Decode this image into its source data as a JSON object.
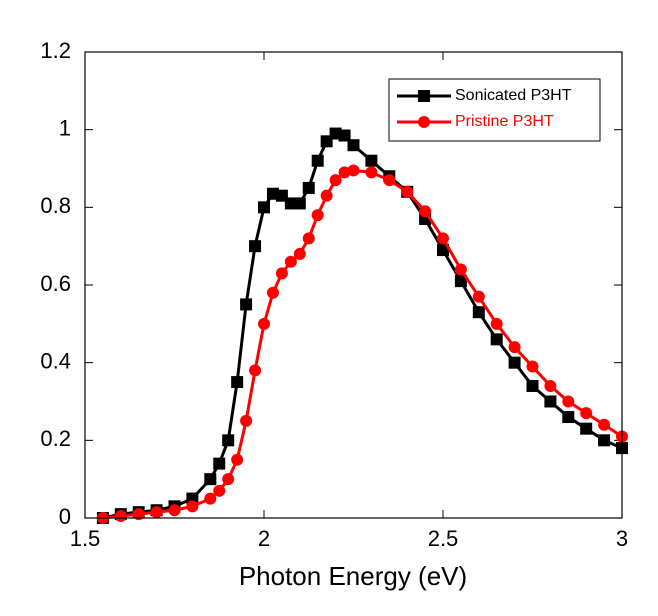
{
  "chart_data": {
    "type": "line",
    "xlabel": "Photon Energy (eV)",
    "x": [
      1.55,
      1.6,
      1.65,
      1.7,
      1.75,
      1.8,
      1.85,
      1.875,
      1.9,
      1.925,
      1.95,
      1.975,
      2.0,
      2.025,
      2.05,
      2.075,
      2.1,
      2.125,
      2.15,
      2.175,
      2.2,
      2.225,
      2.25,
      2.3,
      2.35,
      2.4,
      2.45,
      2.5,
      2.55,
      2.6,
      2.65,
      2.7,
      2.75,
      2.8,
      2.85,
      2.9,
      2.95,
      3.0
    ],
    "series": [
      {
        "name": "Sonicated P3HT",
        "color": "#000000",
        "marker": "square",
        "values": [
          0.0,
          0.01,
          0.015,
          0.02,
          0.03,
          0.05,
          0.1,
          0.14,
          0.2,
          0.35,
          0.55,
          0.7,
          0.8,
          0.835,
          0.83,
          0.81,
          0.81,
          0.85,
          0.92,
          0.97,
          0.99,
          0.985,
          0.96,
          0.92,
          0.88,
          0.84,
          0.77,
          0.69,
          0.61,
          0.53,
          0.46,
          0.4,
          0.34,
          0.3,
          0.26,
          0.23,
          0.2,
          0.18
        ]
      },
      {
        "name": "Pristine P3HT",
        "color": "#ff0000",
        "marker": "circle",
        "values": [
          0.0,
          0.005,
          0.01,
          0.015,
          0.02,
          0.03,
          0.05,
          0.07,
          0.1,
          0.15,
          0.25,
          0.38,
          0.5,
          0.58,
          0.63,
          0.66,
          0.68,
          0.72,
          0.78,
          0.83,
          0.87,
          0.89,
          0.895,
          0.89,
          0.87,
          0.84,
          0.79,
          0.72,
          0.64,
          0.57,
          0.5,
          0.44,
          0.39,
          0.34,
          0.3,
          0.27,
          0.24,
          0.21
        ]
      }
    ],
    "xlim": [
      1.5,
      3
    ],
    "xticks": [
      1.5,
      2,
      2.5,
      3
    ],
    "ylim": [
      0,
      1.2
    ],
    "yticks": [
      0,
      0.2,
      0.4,
      0.6,
      0.8,
      1,
      1.2
    ],
    "legend": "upper right",
    "grid": false
  }
}
